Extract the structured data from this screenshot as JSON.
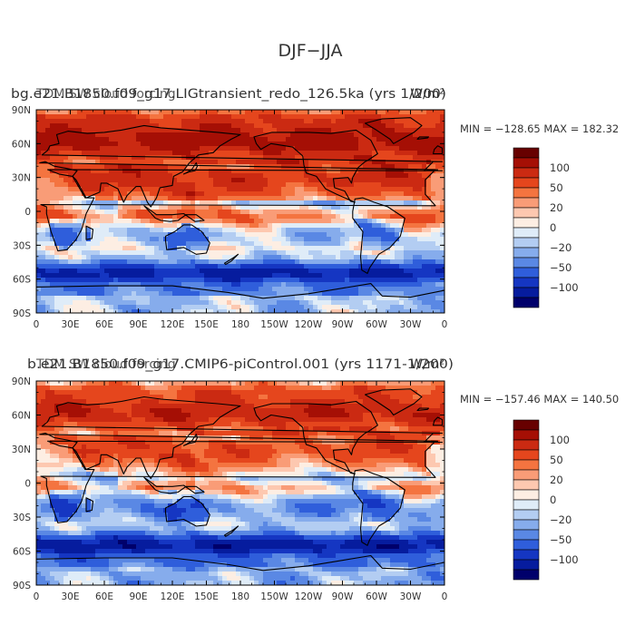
{
  "chart_data": {
    "type": "heatmap",
    "title": "DJF−JJA",
    "colorbar_labels": [
      "100",
      "50",
      "20",
      "0",
      "−20",
      "−50",
      "−100"
    ],
    "colormap": [
      "#670000",
      "#a50f05",
      "#cb2a12",
      "#e5461d",
      "#f47440",
      "#f99c77",
      "#fdc8b0",
      "#fdeee3",
      "#dfecf8",
      "#b3cdf2",
      "#86acec",
      "#5a88e4",
      "#2f5edb",
      "#1536c2",
      "#061c9e",
      "#00006b"
    ],
    "x_ticks": [
      "0",
      "30E",
      "60E",
      "90E",
      "120E",
      "150E",
      "180",
      "150W",
      "120W",
      "90W",
      "60W",
      "30W",
      "0"
    ],
    "y_ticks": [
      "90N",
      "60N",
      "30N",
      "0",
      "30S",
      "60S",
      "90S"
    ],
    "panels": [
      {
        "left_title": "bg.e21.B1850.f09_g17.LIGtransient_redo_126.5ka (yrs 1/200)",
        "overlay_title": "TDM SW cloud forcing",
        "units": "W/m²",
        "min_max": "MIN = −128.65 MAX = 182.32",
        "min": -128.65,
        "max": 182.32,
        "warm_bias": 0.9
      },
      {
        "left_title": "b.e21.B1850.f09_g17.CMIP6-piControl.001 (yrs 1171-1/200)",
        "overlay_title": "TDM SW cloud forcing",
        "units": "W/m²",
        "min_max": "MIN = −157.46 MAX = 140.50",
        "min": -157.46,
        "max": 140.5,
        "warm_bias": 0.0
      }
    ]
  }
}
